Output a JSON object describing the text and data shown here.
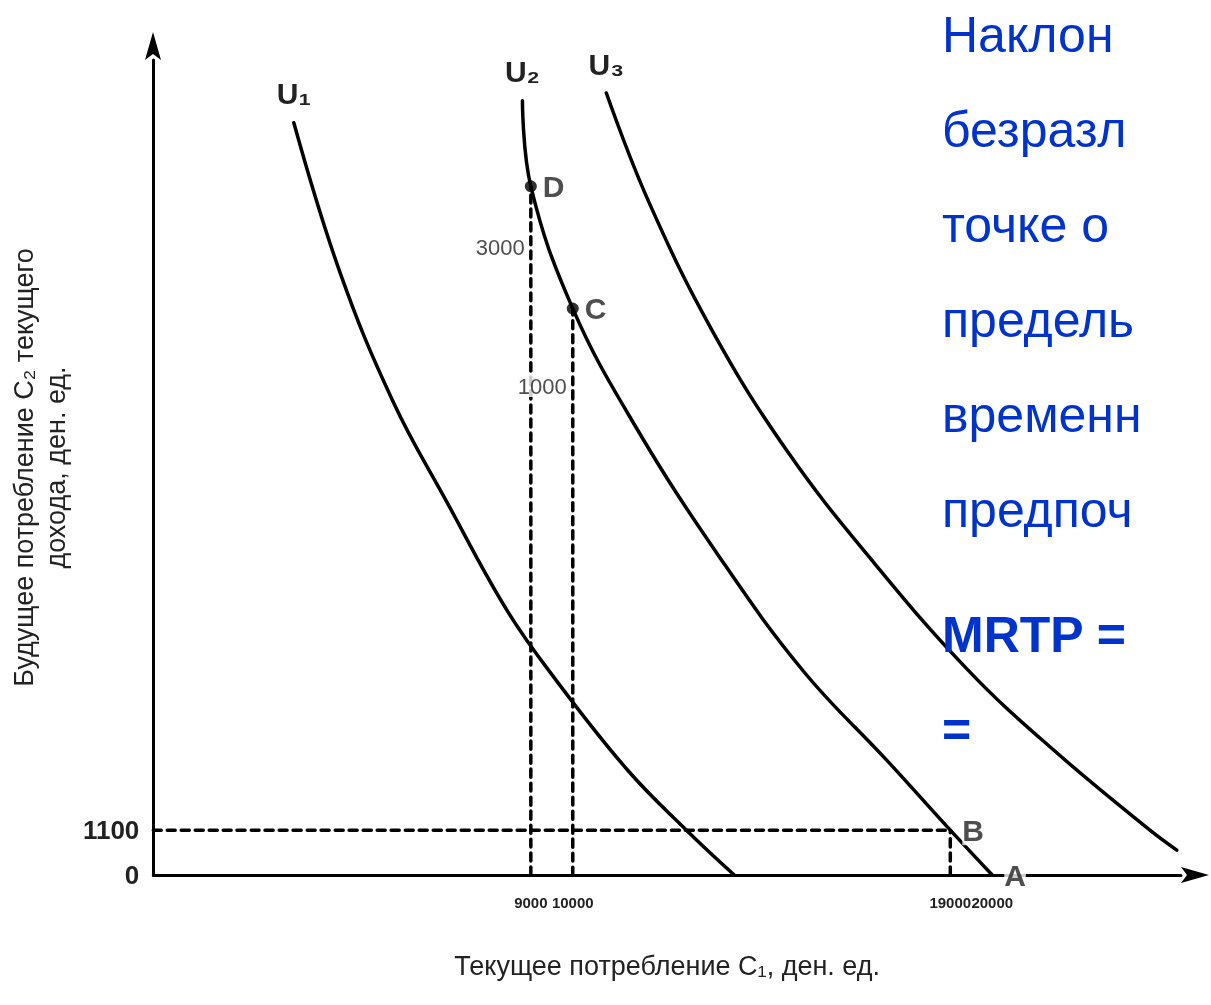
{
  "chart_data": {
    "type": "line",
    "xlabel": "Текущее потребление C₁, ден. ед.",
    "ylabel": "Будущее потребление C₂ текущего\nдохода, ден. ед.",
    "xlim": [
      0,
      24500
    ],
    "ylim": [
      0,
      20000
    ],
    "xticks": [
      9000,
      10000,
      19000,
      20000
    ],
    "yticks": [
      0,
      1100
    ],
    "grid": false,
    "legend": false,
    "marker": "none",
    "line_style": "solid",
    "series": [
      {
        "name": "U₁",
        "color": "#000000",
        "x": [
          3350,
          4450,
          5720,
          6990,
          8440,
          9610,
          11310,
          12710,
          13850
        ],
        "values": [
          18460,
          14790,
          11610,
          9170,
          6480,
          4770,
          2570,
          1100,
          0
        ]
      },
      {
        "name": "U₂",
        "color": "#000000",
        "x": [
          8800,
          9000,
          10000,
          11500,
          13500,
          15500,
          17500,
          19000,
          20000
        ],
        "values": [
          19000,
          16900,
          13900,
          11000,
          7800,
          5000,
          2800,
          1100,
          0
        ]
      },
      {
        "name": "U₃",
        "color": "#000000",
        "x": [
          10800,
          11820,
          13340,
          15120,
          17150,
          19440,
          21470,
          23760,
          24400
        ],
        "values": [
          19190,
          16500,
          13330,
          10390,
          7700,
          5010,
          3060,
          1100,
          610
        ]
      },
      {
        "color": "#000000",
        "line_style": "dashed",
        "x": [
          9000,
          9000
        ],
        "values": [
          0,
          16900
        ]
      },
      {
        "color": "#000000",
        "line_style": "dashed",
        "x": [
          10000,
          10000
        ],
        "values": [
          0,
          13900
        ]
      },
      {
        "color": "#000000",
        "line_style": "dashed",
        "x": [
          0,
          19000
        ],
        "values": [
          1100,
          1100
        ]
      },
      {
        "color": "#000000",
        "line_style": "dashed",
        "x": [
          19000,
          19000
        ],
        "values": [
          0,
          1100
        ]
      },
      {
        "type": "scatter",
        "marker": "circle",
        "color": "#000000",
        "x": [
          9000,
          10000
        ],
        "values": [
          16900,
          13900
        ]
      }
    ],
    "annotations": [
      {
        "text": "D",
        "x": 9000,
        "y": 16900
      },
      {
        "text": "C",
        "x": 10000,
        "y": 13900
      },
      {
        "text": "B",
        "x": 19000,
        "y": 1100
      },
      {
        "text": "A",
        "x": 20000,
        "y": 0
      },
      {
        "text": "3000",
        "x": 9000,
        "y": 15400
      },
      {
        "text": "1000",
        "x": 10000,
        "y": 12000
      },
      "Наклон",
      "безразл",
      "точке о",
      "предель",
      "временн",
      "предпоч",
      "MRTP =",
      "="
    ]
  }
}
